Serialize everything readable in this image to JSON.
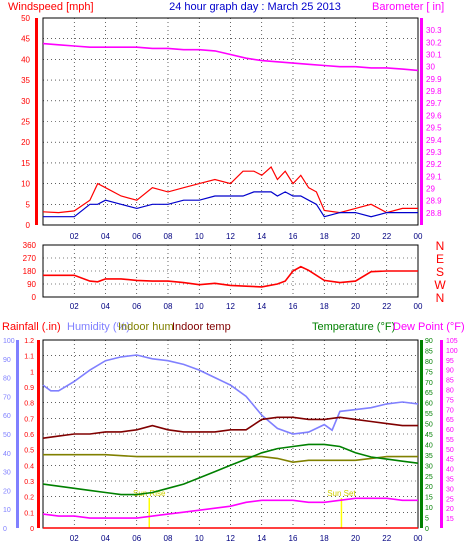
{
  "header": {
    "left_title": "Windspeed [mph]",
    "center_title": "24 hour graph day : March 25 2013",
    "right_title": "Barometer [ in]"
  },
  "bottom_header": {
    "rainfall": "Rainfall (.in)",
    "humidity": "Humidity (%)",
    "indoor_hum": "Indoor hum",
    "indoor_temp": "Indoor temp",
    "temperature": "Temperature (°F)",
    "dew_point": "Dew Point (°F)"
  },
  "annotations": {
    "sun_rise": "Sun Rise",
    "sun_set": "Sun Set"
  },
  "colors": {
    "wind": "#ff0000",
    "wind_avg": "#0000cc",
    "barometer": "#ff00ff",
    "direction": "#ff0000",
    "humidity": "#8080ff",
    "indoor_hum": "#808000",
    "indoor_temp": "#800000",
    "temperature": "#008000",
    "dew_point": "#ff00ff",
    "rainfall": "#ff0000",
    "sun": "#ffff00",
    "grid": "#000000"
  },
  "chart_data": [
    {
      "type": "line",
      "title": "24 hour graph day : March 25 2013",
      "x_ticks": [
        "02",
        "04",
        "06",
        "08",
        "10",
        "12",
        "14",
        "16",
        "18",
        "20",
        "22",
        "00"
      ],
      "xlim_hours": [
        0,
        24
      ],
      "ylabel": "Windspeed [mph]",
      "ylim": [
        0,
        50
      ],
      "y_ticks": [
        0,
        5,
        10,
        15,
        20,
        25,
        30,
        35,
        40,
        45,
        50
      ],
      "y2label": "Barometer [ in]",
      "y2lim": [
        28.7,
        30.4
      ],
      "y2_ticks": [
        "28.8",
        "28.9",
        "29",
        "29.1",
        "29.2",
        "29.3",
        "29.4",
        "29.5",
        "29.6",
        "29.7",
        "29.8",
        "29.9",
        "30",
        "30.1",
        "30.2",
        "30.3"
      ],
      "series": [
        {
          "name": "Windspeed",
          "key": "wind_gust",
          "axis": "y",
          "x": [
            0,
            1,
            2,
            3,
            3.5,
            4,
            5,
            6,
            7,
            8,
            9,
            10,
            11,
            12,
            12.8,
            13.5,
            14,
            14.6,
            15,
            15.5,
            16,
            16.5,
            17,
            17.5,
            18,
            19,
            20,
            21,
            22,
            23,
            24
          ],
          "y": [
            3.2,
            3.0,
            3.4,
            6,
            10,
            9,
            7,
            6,
            9,
            8,
            9,
            10,
            11,
            10,
            13,
            13,
            12,
            14,
            11,
            13,
            10,
            12,
            9,
            8,
            3.5,
            3,
            4,
            5,
            3,
            4,
            4
          ]
        },
        {
          "key": "wind_avg",
          "axis": "y",
          "x": [
            0,
            1,
            2,
            3,
            3.5,
            4,
            5,
            6,
            7,
            8,
            9,
            10,
            11,
            12,
            12.8,
            13.5,
            14,
            14.6,
            15,
            15.5,
            16,
            16.5,
            17,
            17.5,
            18,
            19,
            20,
            21,
            22,
            23,
            24
          ],
          "y": [
            2,
            2,
            2,
            5,
            5,
            6,
            5,
            4,
            5,
            5,
            6,
            6,
            7,
            7,
            7,
            8,
            8,
            8,
            7,
            8,
            7,
            7,
            6,
            5,
            2,
            3,
            3,
            2,
            3,
            3,
            3
          ]
        },
        {
          "name": "Barometer",
          "key": "barometer",
          "axis": "y2",
          "x": [
            0,
            1,
            2,
            3,
            4,
            5,
            6,
            7,
            8,
            9,
            10,
            11,
            12,
            13,
            14,
            15,
            16,
            17,
            18,
            19,
            20,
            21,
            22,
            23,
            24
          ],
          "y": [
            30.19,
            30.18,
            30.17,
            30.16,
            30.16,
            30.16,
            30.16,
            30.15,
            30.15,
            30.14,
            30.14,
            30.13,
            30.1,
            30.07,
            30.05,
            30.04,
            30.03,
            30.02,
            30.01,
            30.0,
            30.0,
            29.99,
            29.99,
            29.98,
            29.97
          ]
        }
      ]
    },
    {
      "type": "line",
      "x_ticks": [
        "02",
        "04",
        "06",
        "08",
        "10",
        "12",
        "14",
        "16",
        "18",
        "20",
        "22",
        "00"
      ],
      "ylabel": "Wind direction",
      "ylim": [
        0,
        360
      ],
      "y_ticks": [
        0,
        90,
        180,
        270,
        360
      ],
      "y2_labels": [
        "N",
        "W",
        "S",
        "E",
        "N"
      ],
      "series": [
        {
          "key": "direction",
          "x": [
            0,
            1,
            2,
            3,
            3.5,
            4,
            5,
            6,
            7,
            8,
            9,
            10,
            11,
            12,
            13,
            14,
            15,
            15.5,
            16,
            16.5,
            17,
            18,
            19,
            20,
            21,
            22,
            23,
            24
          ],
          "y": [
            150,
            150,
            150,
            110,
            105,
            125,
            125,
            115,
            110,
            110,
            100,
            85,
            95,
            80,
            75,
            70,
            90,
            110,
            180,
            210,
            185,
            115,
            100,
            110,
            175,
            180,
            180,
            180
          ]
        }
      ]
    },
    {
      "type": "line",
      "x_ticks": [
        "02",
        "04",
        "06",
        "08",
        "10",
        "12",
        "14",
        "16",
        "18",
        "20",
        "22",
        "00"
      ],
      "ylabels": [
        "Rainfall (.in)",
        "Humidity (%)",
        "Indoor hum",
        "Indoor temp",
        "Temperature (°F)",
        "Dew Point (°F)"
      ],
      "rain_lim": [
        0,
        1.2
      ],
      "rain_ticks": [
        "0",
        "0.1",
        "0.2",
        "0.3",
        "0.4",
        "0.5",
        "0.6",
        "0.7",
        "0.8",
        "0.9",
        "1",
        "1.1",
        "1.2"
      ],
      "hum_lim": [
        0,
        100
      ],
      "hum_ticks": [
        0,
        10,
        20,
        30,
        40,
        50,
        60,
        70,
        80,
        90,
        100
      ],
      "temp_lim": [
        0,
        90
      ],
      "temp_ticks": [
        0,
        5,
        10,
        15,
        20,
        25,
        30,
        35,
        40,
        45,
        50,
        55,
        60,
        65,
        70,
        75,
        80,
        85,
        90
      ],
      "dew_lim": [
        10,
        105
      ],
      "dew_ticks": [
        15,
        20,
        25,
        30,
        35,
        40,
        45,
        50,
        55,
        60,
        65,
        70,
        75,
        80,
        85,
        90,
        95,
        100,
        105
      ],
      "sun_rise_hour": 6.8,
      "sun_set_hour": 19.1,
      "series": [
        {
          "name": "Humidity (%)",
          "key": "humidity",
          "axis": "hum",
          "x": [
            0,
            0.5,
            1,
            2,
            3,
            4,
            5,
            6,
            7,
            8,
            9,
            10,
            11,
            12,
            13,
            14,
            15,
            16,
            17,
            18,
            18.5,
            19,
            20,
            21,
            22,
            23,
            24
          ],
          "y": [
            76,
            73,
            73,
            78,
            84,
            89,
            91,
            92,
            90,
            89,
            87,
            84,
            80,
            76,
            70,
            60,
            53,
            50,
            51,
            55,
            52,
            62,
            63,
            64,
            66,
            67,
            66
          ]
        },
        {
          "name": "Indoor hum",
          "key": "indoor_hum",
          "axis": "hum",
          "x": [
            0,
            2,
            4,
            6,
            8,
            10,
            12,
            13,
            14,
            15,
            16,
            17,
            18,
            19,
            20,
            21,
            22,
            23,
            24
          ],
          "y": [
            39,
            39,
            39,
            38,
            38,
            38,
            38,
            38,
            38,
            37,
            35,
            36,
            36,
            36,
            36,
            37,
            38,
            38,
            38
          ]
        },
        {
          "name": "Indoor temp",
          "key": "indoor_temp",
          "axis": "temp",
          "x": [
            0,
            1,
            2,
            3,
            4,
            5,
            6,
            7,
            8,
            9,
            10,
            11,
            12,
            13,
            14,
            15,
            16,
            17,
            18,
            19,
            20,
            21,
            22,
            23,
            24
          ],
          "y": [
            43,
            44,
            45,
            45,
            46,
            46,
            47,
            49,
            47,
            46,
            46,
            46,
            47,
            47,
            52,
            53,
            53,
            52,
            52,
            53,
            52,
            51,
            50,
            49,
            49
          ]
        },
        {
          "name": "Temperature (°F)",
          "key": "temperature",
          "axis": "temp",
          "x": [
            0,
            1,
            2,
            3,
            4,
            5,
            6,
            7,
            8,
            9,
            10,
            11,
            12,
            13,
            14,
            15,
            16,
            17,
            18,
            19,
            20,
            21,
            22,
            23,
            24
          ],
          "y": [
            21,
            20,
            19,
            18,
            17,
            16,
            16,
            17,
            19,
            21,
            24,
            27,
            30,
            33,
            36,
            38,
            39,
            40,
            40,
            39,
            36,
            34,
            33,
            32,
            31
          ]
        },
        {
          "name": "Dew Point (°F)",
          "key": "dew_point",
          "axis": "dew",
          "x": [
            0,
            1,
            2,
            3,
            4,
            5,
            6,
            7,
            8,
            9,
            10,
            11,
            12,
            13,
            14,
            15,
            16,
            17,
            18,
            19,
            20,
            21,
            22,
            23,
            24
          ],
          "y": [
            17,
            16,
            16,
            15,
            15,
            15,
            15,
            16,
            17,
            18,
            19,
            20,
            21,
            23,
            24,
            24,
            24,
            23,
            23,
            24,
            25,
            25,
            25,
            24,
            24
          ]
        },
        {
          "name": "Rainfall (.in)",
          "key": "rainfall",
          "axis": "rain",
          "x": [
            0,
            24
          ],
          "y": [
            0,
            0
          ]
        }
      ]
    }
  ]
}
